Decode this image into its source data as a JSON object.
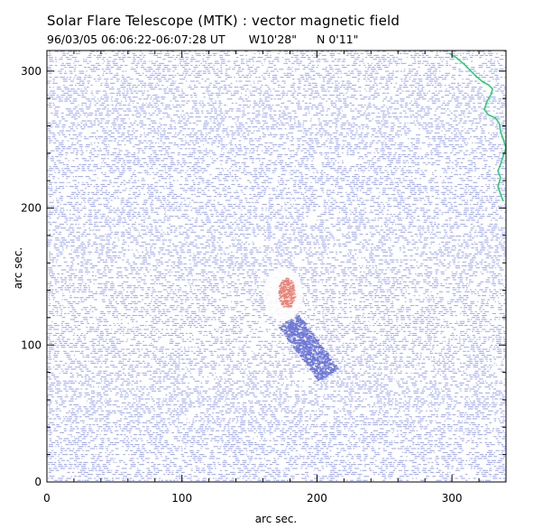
{
  "header": {
    "title": "Solar Flare Telescope (MTK) : vector magnetic field",
    "date_time": "96/03/05  06:06:22-06:07:28 UT",
    "longitude": "W10'28\"",
    "latitude": "N 0'11\""
  },
  "axes": {
    "xlabel": "arc sec.",
    "ylabel": "arc sec.",
    "xlim": [
      0,
      340
    ],
    "ylim": [
      0,
      315
    ],
    "xticks": [
      0,
      100,
      200,
      300
    ],
    "yticks": [
      0,
      100,
      200,
      300
    ]
  },
  "colors": {
    "field_blue": "#8f9ae8",
    "field_red": "#e8867a",
    "limb_green": "#2ecc71",
    "axis": "#000000"
  },
  "map": {
    "feature_labels": []
  }
}
